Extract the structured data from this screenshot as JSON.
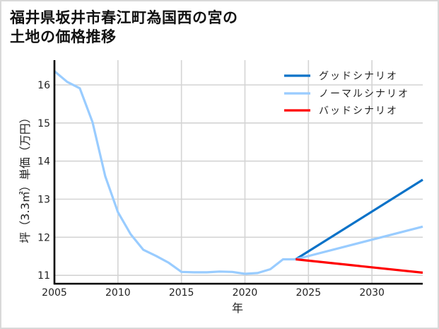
{
  "title": {
    "line1": "福井県坂井市春江町為国西の宮の",
    "line2": "土地の価格推移"
  },
  "chart_data": {
    "type": "line",
    "title": "福井県坂井市春江町為国西の宮の土地の価格推移",
    "xlabel": "年",
    "ylabel": "坪（3.3㎡）単価（万円）",
    "xlim": [
      2005,
      2034
    ],
    "ylim": [
      10.78,
      16.65
    ],
    "xticks": [
      2005,
      2010,
      2015,
      2020,
      2025,
      2030
    ],
    "yticks": [
      11,
      12,
      13,
      14,
      15,
      16
    ],
    "grid": true,
    "legend_position": "upper right",
    "series": [
      {
        "name": "",
        "in_legend": false,
        "color": "#99ccff",
        "x": [
          2005,
          2006,
          2007,
          2008,
          2009,
          2010,
          2011,
          2012,
          2013,
          2014,
          2015,
          2016,
          2017,
          2018,
          2019,
          2020,
          2021,
          2022,
          2023,
          2024
        ],
        "y": [
          16.36,
          16.08,
          15.91,
          15.02,
          13.6,
          12.66,
          12.08,
          11.67,
          11.51,
          11.33,
          11.09,
          11.08,
          11.08,
          11.1,
          11.09,
          11.04,
          11.06,
          11.16,
          11.42,
          11.42
        ]
      },
      {
        "name": "グッドシナリオ",
        "in_legend": true,
        "color": "#0a72c8",
        "x": [
          2024,
          2034
        ],
        "y": [
          11.42,
          13.51
        ]
      },
      {
        "name": "ノーマルシナリオ",
        "in_legend": true,
        "color": "#99ccff",
        "x": [
          2024,
          2034
        ],
        "y": [
          11.42,
          12.28
        ]
      },
      {
        "name": "バッドシナリオ",
        "in_legend": true,
        "color": "#ff0000",
        "x": [
          2024,
          2034
        ],
        "y": [
          11.42,
          11.07
        ]
      }
    ]
  }
}
